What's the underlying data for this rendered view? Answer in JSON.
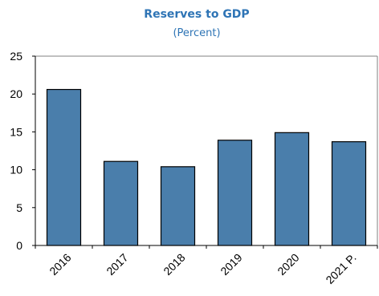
{
  "chart_data": {
    "type": "bar",
    "title": "Reserves to GDP",
    "subtitle": "(Percent)",
    "categories": [
      "2016",
      "2017",
      "2018",
      "2019",
      "2020",
      "2021 P."
    ],
    "values": [
      20.6,
      11.1,
      10.4,
      13.9,
      14.9,
      13.7
    ],
    "ylim": [
      0,
      25
    ],
    "yticks": [
      "0",
      "5",
      "10",
      "15",
      "20",
      "25"
    ],
    "xlabel": "",
    "ylabel": "",
    "grid": false,
    "legend": "none",
    "colors": {
      "bar_fill": "#4a7eab",
      "bar_stroke": "#000000",
      "title": "#2e74b5",
      "axis": "#000000",
      "frame": "#808080"
    }
  }
}
